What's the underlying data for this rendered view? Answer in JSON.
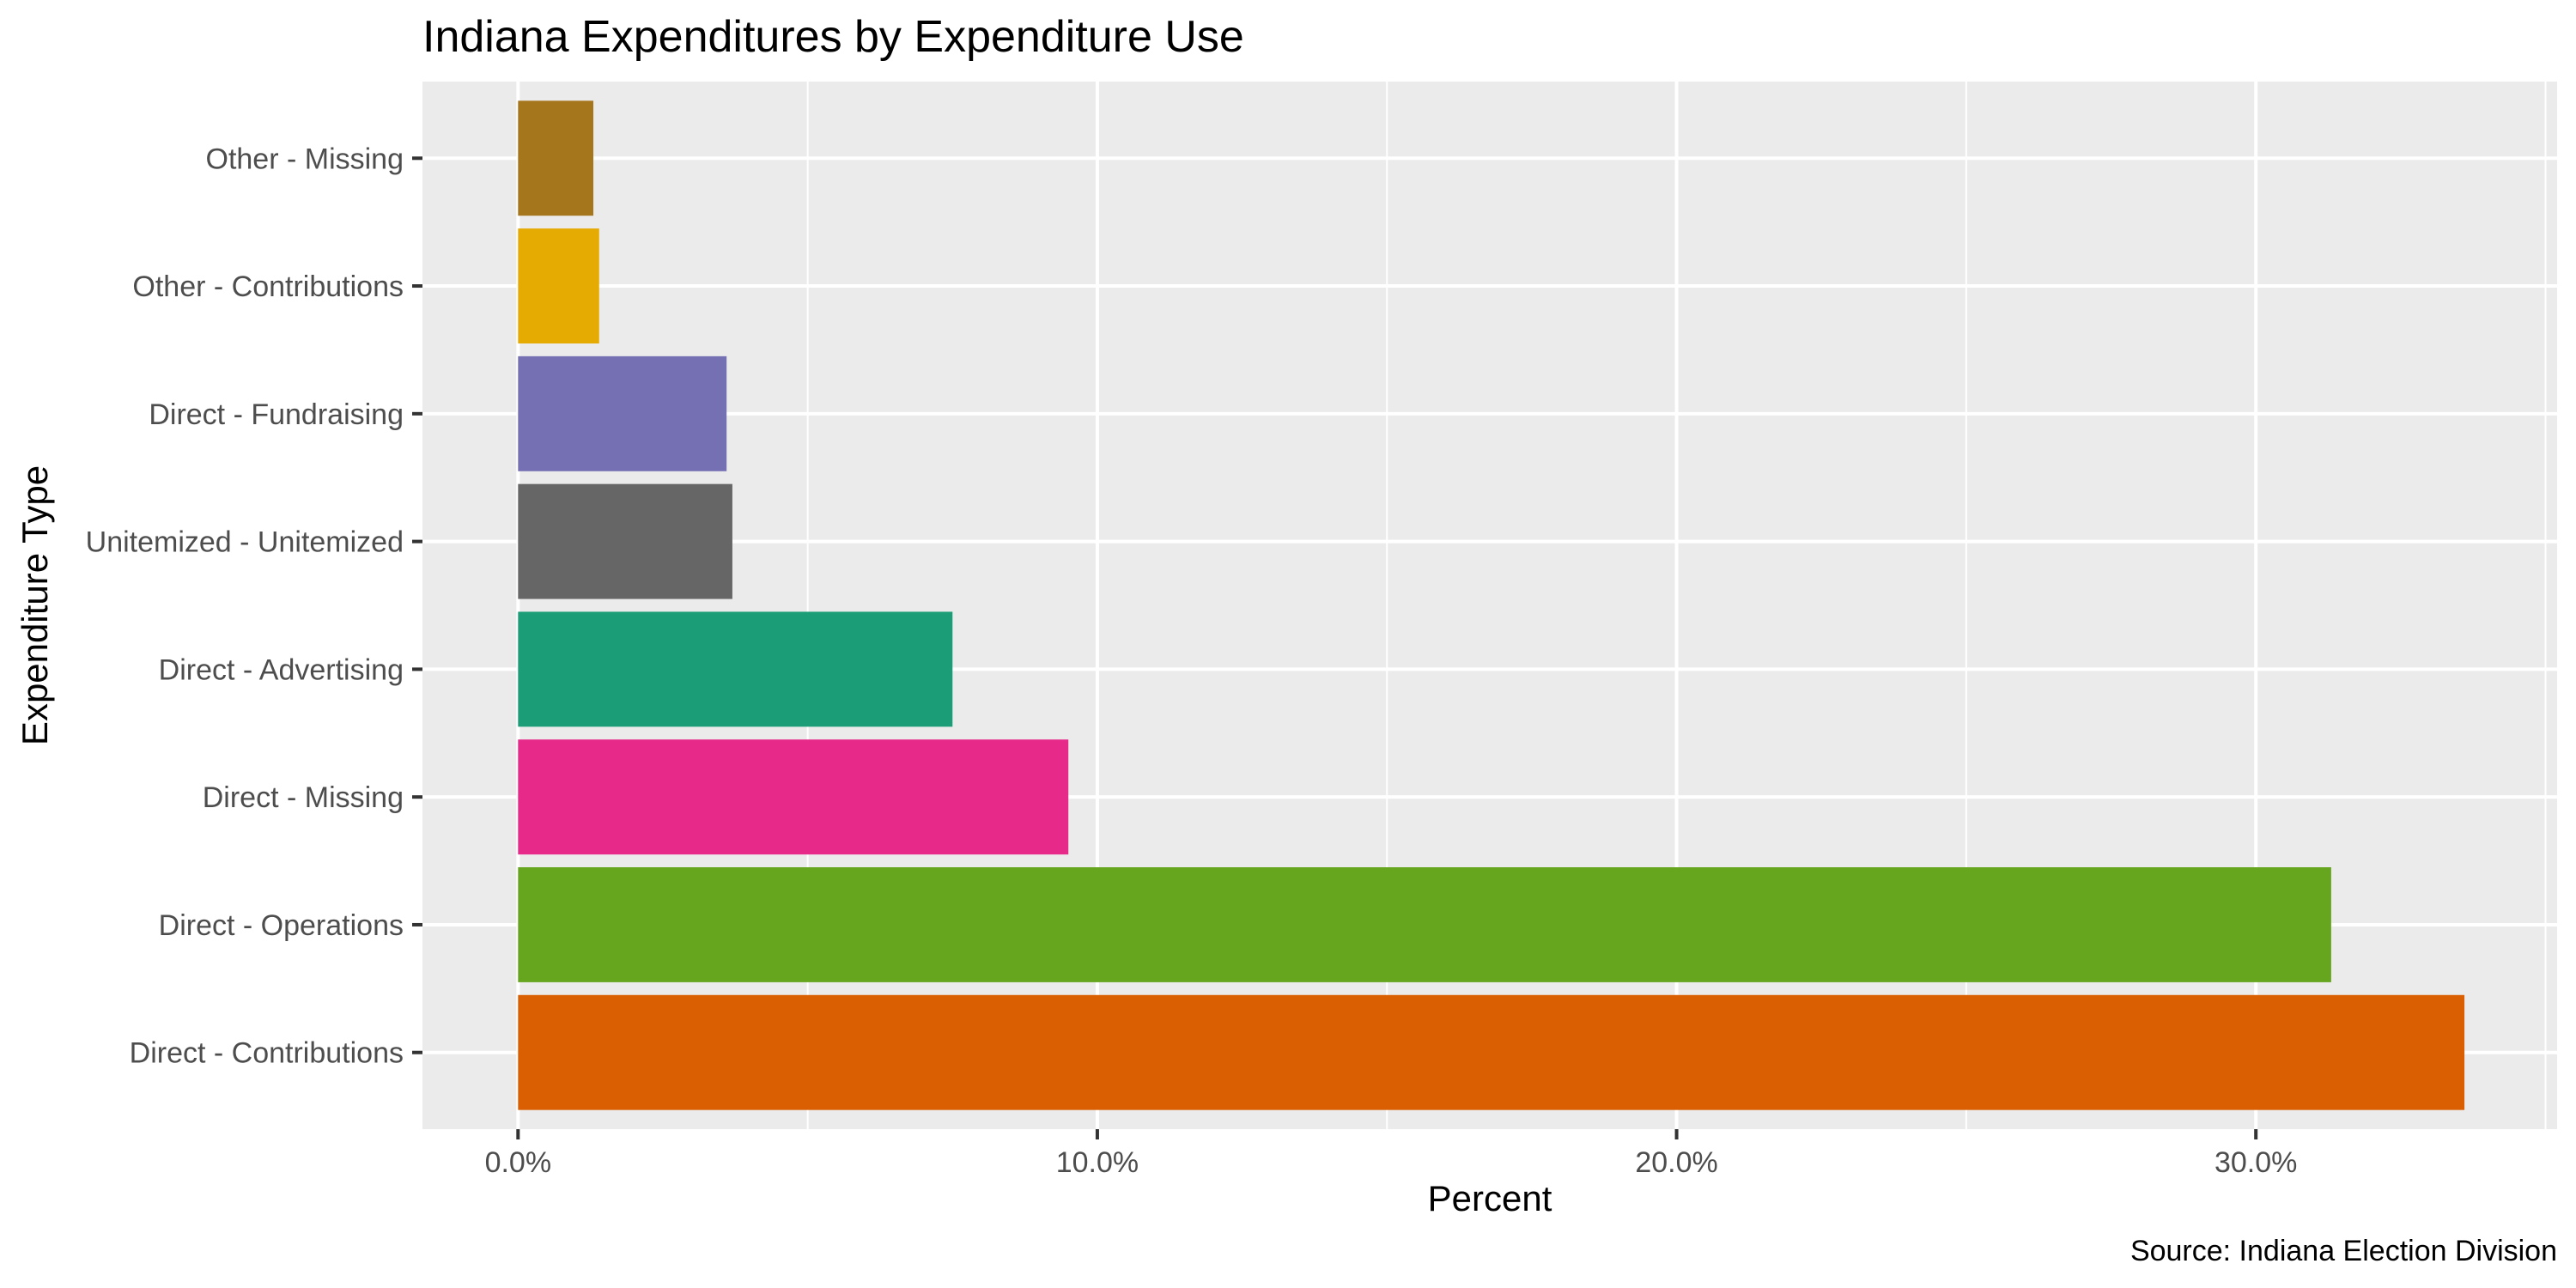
{
  "chart_data": {
    "type": "bar",
    "orientation": "horizontal",
    "title": "Indiana Expenditures by Expenditure Use",
    "xlabel": "Percent",
    "ylabel": "Expenditure Type",
    "caption": "Source: Indiana Election Division",
    "categories": [
      "Direct - Contributions",
      "Direct - Operations",
      "Direct - Missing",
      "Direct - Advertising",
      "Unitemized - Unitemized",
      "Direct - Fundraising",
      "Other - Contributions",
      "Other - Missing"
    ],
    "values": [
      33.6,
      31.3,
      9.5,
      7.5,
      3.7,
      3.6,
      1.4,
      1.3
    ],
    "colors": [
      "#D95F02",
      "#66A61E",
      "#E7298A",
      "#1B9E77",
      "#666666",
      "#7570B3",
      "#E6AB02",
      "#A6761D"
    ],
    "xlim": [
      -1.65,
      35.2
    ],
    "x_ticks": [
      0,
      10,
      20,
      30
    ],
    "x_tick_labels": [
      "0.0%",
      "10.0%",
      "20.0%",
      "30.0%"
    ],
    "grid": true,
    "legend": "none"
  }
}
